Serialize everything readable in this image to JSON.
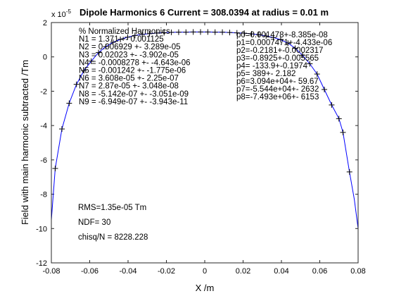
{
  "chart_data": {
    "type": "line",
    "title": "Dipole Harmonics 6 Current = 308.0394 at radius = 0.01 m",
    "xlabel": "X /m",
    "ylabel": "Field with main harmonic subtracted /Tm",
    "xlim": [
      -0.08,
      0.08
    ],
    "ylim": [
      -12,
      2
    ],
    "y_exponent_label": "x 10",
    "y_exponent": "-5",
    "x_ticks": [
      "-0.08",
      "-0.06",
      "-0.04",
      "-0.02",
      "0",
      "0.02",
      "0.04",
      "0.06",
      "0.08"
    ],
    "y_ticks": [
      "-12",
      "-10",
      "-8",
      "-6",
      "-4",
      "-2",
      "0",
      "2"
    ],
    "grid": false,
    "line_color": "#0000ff",
    "marker_color": "#000000",
    "series": [
      {
        "marker": "+",
        "x": [
          -0.078,
          -0.0745,
          -0.0707,
          -0.0669,
          -0.063,
          -0.0592,
          -0.0554,
          -0.0516,
          -0.0478,
          -0.044,
          -0.0402,
          -0.0364,
          -0.0326,
          -0.0288,
          -0.025,
          -0.0212,
          -0.0174,
          -0.0136,
          -0.0098,
          -0.006,
          -0.0022,
          0.0016,
          0.0054,
          0.0092,
          0.013,
          0.0168,
          0.0206,
          0.0244,
          0.0282,
          0.032,
          0.0358,
          0.0396,
          0.0434,
          0.0472,
          0.051,
          0.0548,
          0.0586,
          0.0624,
          0.0662,
          0.07,
          0.0721,
          0.0755
        ],
        "y": [
          -6.5,
          -4.2,
          -2.7,
          -1.6,
          -0.8,
          -0.25,
          0.25,
          0.6,
          0.85,
          1.02,
          1.15,
          1.25,
          1.31,
          1.35,
          1.39,
          1.41,
          1.43,
          1.44,
          1.44,
          1.45,
          1.45,
          1.45,
          1.44,
          1.44,
          1.42,
          1.4,
          1.38,
          1.34,
          1.29,
          1.22,
          1.13,
          1.0,
          0.8,
          0.5,
          0.1,
          -0.4,
          -1.0,
          -1.9,
          -2.8,
          -3.6,
          -4.4,
          -6.7
        ]
      }
    ],
    "line_x": [
      -0.08,
      -0.078,
      -0.0745,
      -0.0707,
      -0.0669,
      -0.063,
      -0.0592,
      -0.0554,
      -0.0516,
      -0.0478,
      -0.044,
      -0.0402,
      -0.0364,
      -0.0326,
      -0.0288,
      -0.025,
      -0.0212,
      -0.0174,
      -0.0136,
      -0.0098,
      -0.006,
      -0.0022,
      0.0016,
      0.0054,
      0.0092,
      0.013,
      0.0168,
      0.0206,
      0.0244,
      0.0282,
      0.032,
      0.0358,
      0.0396,
      0.0434,
      0.0472,
      0.051,
      0.0548,
      0.0586,
      0.0624,
      0.0662,
      0.07,
      0.0721,
      0.0755,
      0.078,
      0.08
    ],
    "line_y": [
      -9.5,
      -6.5,
      -4.2,
      -2.7,
      -1.6,
      -0.8,
      -0.25,
      0.25,
      0.6,
      0.85,
      1.02,
      1.15,
      1.25,
      1.31,
      1.35,
      1.39,
      1.41,
      1.43,
      1.44,
      1.44,
      1.45,
      1.45,
      1.45,
      1.44,
      1.44,
      1.42,
      1.4,
      1.38,
      1.34,
      1.29,
      1.22,
      1.13,
      1.0,
      0.8,
      0.5,
      0.1,
      -0.4,
      -1.0,
      -1.9,
      -2.8,
      -3.6,
      -4.4,
      -6.7,
      -8.3,
      -10.0
    ],
    "annotations_left": [
      "% Normalized Harmonics",
      "N1 = 1.371 +- 0.001125",
      "N2 = 0.006929 +- 3.289e-05",
      "N3 = 0.02023 +- -3.902e-05",
      "N4 = -0.0008278 +- -4.643e-06",
      "N5 = -0.001242 +- -1.775e-06",
      "N6 = 3.608e-05 +- 2.25e-07",
      "N7 = 2.87e-05 +- 3.048e-08",
      "N8 = -5.142e-07 +- -3.051e-09",
      "N9 = -6.949e-07 +- -3.943e-11"
    ],
    "annotations_right": [
      "p0=0.001478+-8.385e-08",
      "p1=0.0007471+-4.433e-06",
      "p2=-0.2181+-0.0002317",
      "p3=-0.8925+-0.005565",
      "p4= -133.9+-0.1974",
      "p5=    389+- 2.182",
      "p6=3.094e+04+- 59.67",
      "p7=-5.544e+04+- 2632",
      "p8=-7.493e+06+-  6153"
    ],
    "stats": [
      "RMS=1.35e-05 Tm",
      "NDF=   30",
      "chisq/N = 8228.228"
    ]
  }
}
